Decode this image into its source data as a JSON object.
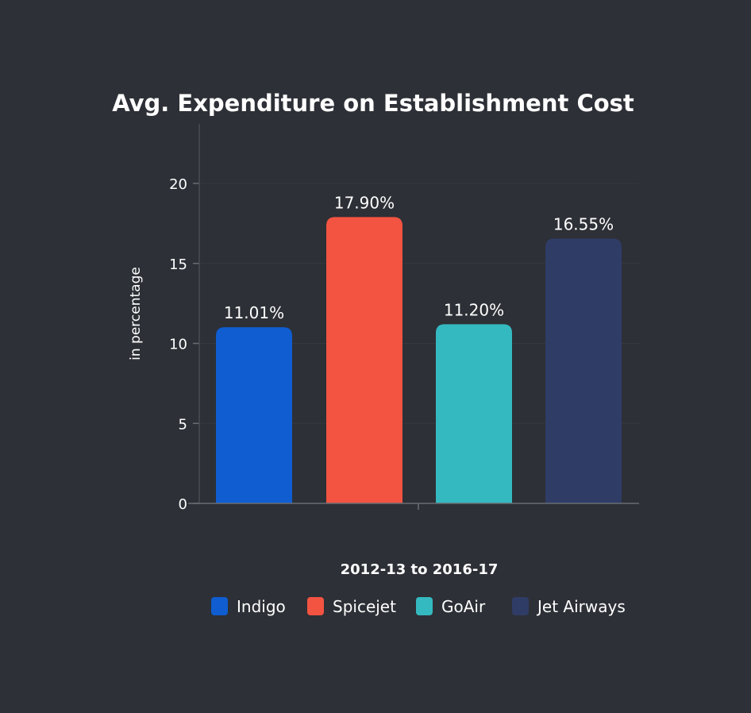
{
  "chart_data": {
    "type": "bar",
    "title": "Avg. Expenditure on Establishment Cost",
    "xlabel": "2012-13 to 2016-17",
    "ylabel": "in percentage",
    "ylim": [
      0,
      23.5
    ],
    "yticks": [
      0,
      5,
      10,
      15,
      20
    ],
    "grid": true,
    "legend_position": "bottom",
    "categories": [
      "2012-13 to 2016-17"
    ],
    "series": [
      {
        "name": "Indigo",
        "values": [
          11.01
        ],
        "label": "11.01%",
        "color": "#0f5dd0"
      },
      {
        "name": "Spicejet",
        "values": [
          17.9
        ],
        "label": "17.90%",
        "color": "#f35442"
      },
      {
        "name": "GoAir",
        "values": [
          11.2
        ],
        "label": "11.20%",
        "color": "#35b9c0"
      },
      {
        "name": "Jet Airways",
        "values": [
          16.55
        ],
        "label": "16.55%",
        "color": "#2f3c66"
      }
    ]
  }
}
